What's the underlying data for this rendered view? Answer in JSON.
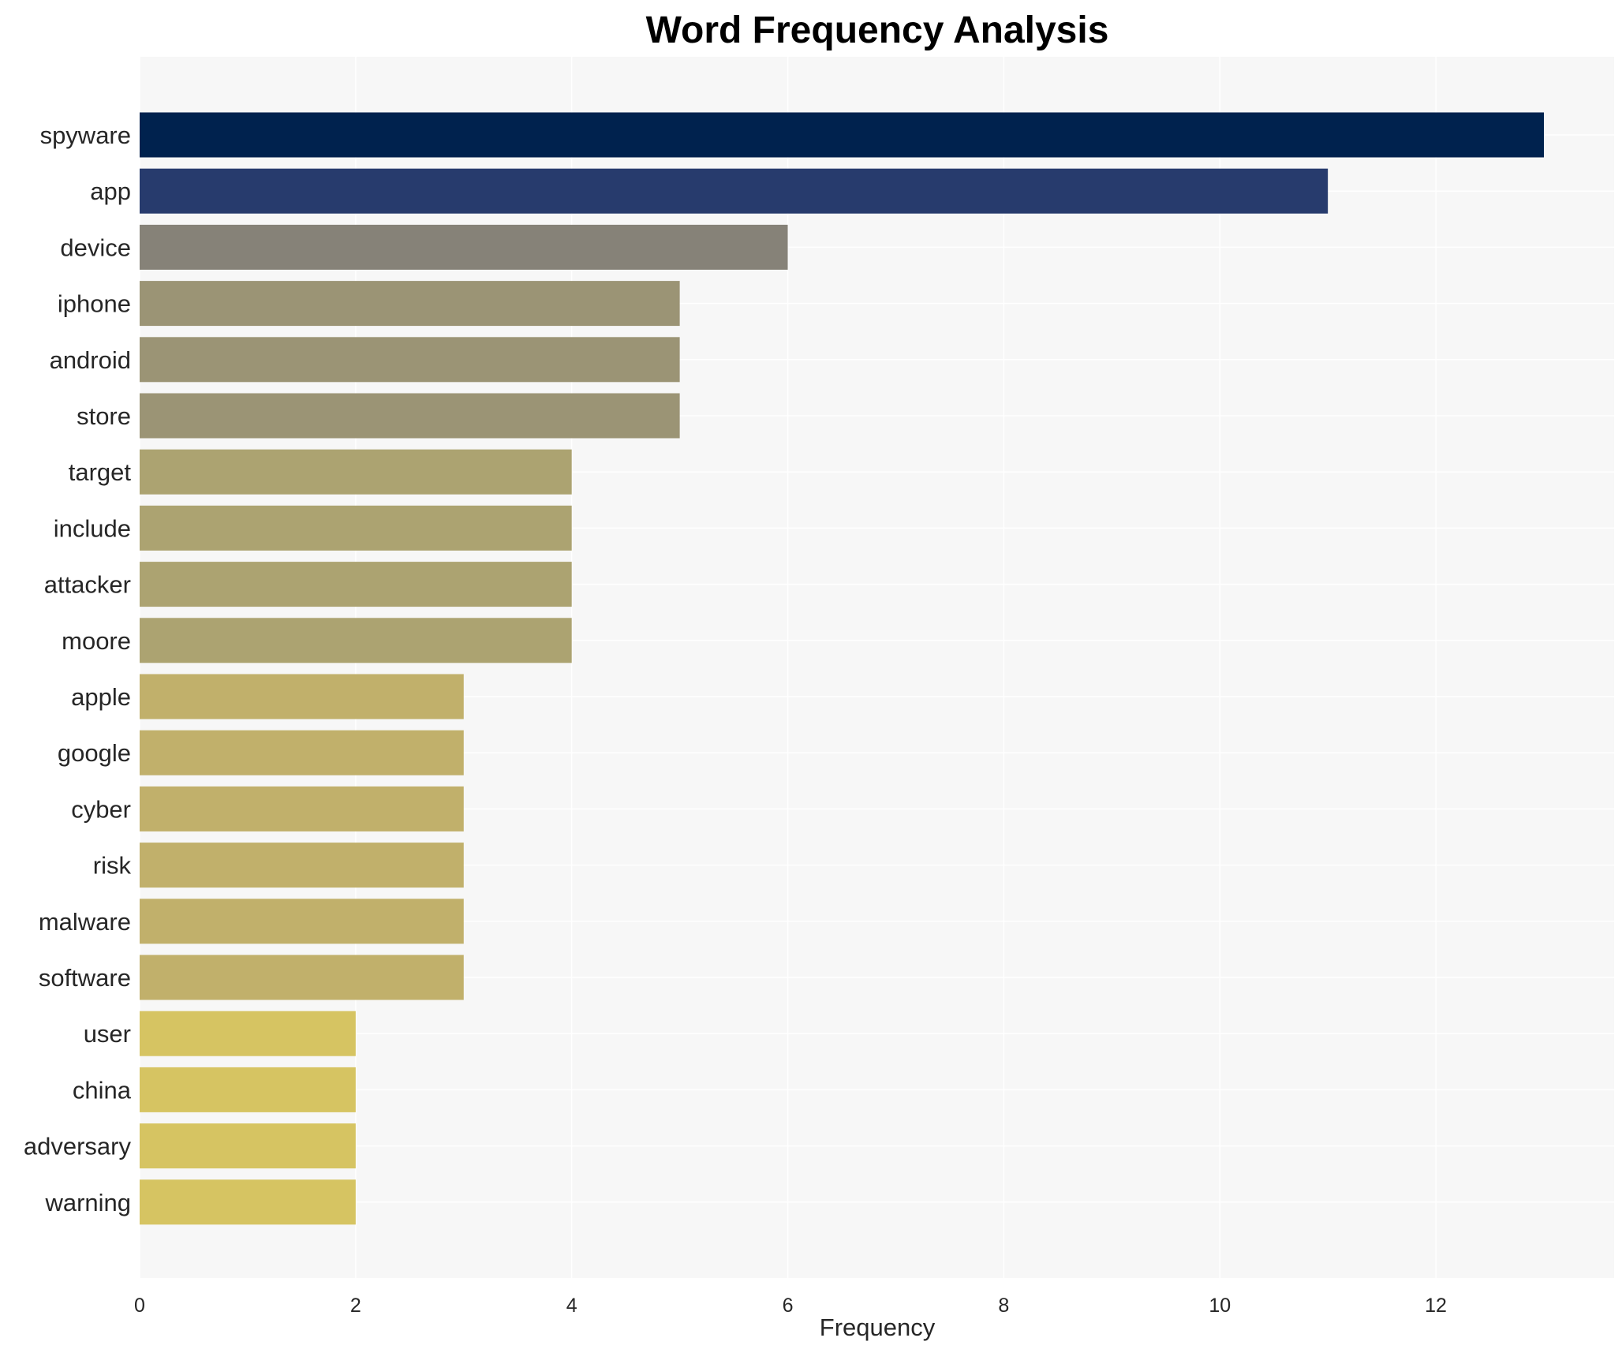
{
  "chart_data": {
    "type": "bar",
    "orientation": "horizontal",
    "title": "Word Frequency Analysis",
    "xlabel": "Frequency",
    "ylabel": "",
    "categories": [
      "spyware",
      "app",
      "device",
      "iphone",
      "android",
      "store",
      "target",
      "include",
      "attacker",
      "moore",
      "apple",
      "google",
      "cyber",
      "risk",
      "malware",
      "software",
      "user",
      "china",
      "adversary",
      "warning"
    ],
    "values": [
      13,
      11,
      6,
      5,
      5,
      5,
      4,
      4,
      4,
      4,
      3,
      3,
      3,
      3,
      3,
      3,
      2,
      2,
      2,
      2
    ],
    "colors": [
      "#00224e",
      "#273b6d",
      "#868278",
      "#9b9475",
      "#9b9475",
      "#9b9475",
      "#aca371",
      "#aca371",
      "#aca371",
      "#aca371",
      "#c1b06b",
      "#c1b06b",
      "#c1b06b",
      "#c1b06b",
      "#c1b06b",
      "#c1b06b",
      "#d6c462",
      "#d6c462",
      "#d6c462",
      "#d6c462"
    ],
    "xlim": [
      0,
      13.65
    ],
    "xticks": [
      0,
      2,
      4,
      6,
      8,
      10,
      12
    ],
    "grid": true,
    "legend": "none",
    "background": "#f7f7f7"
  }
}
